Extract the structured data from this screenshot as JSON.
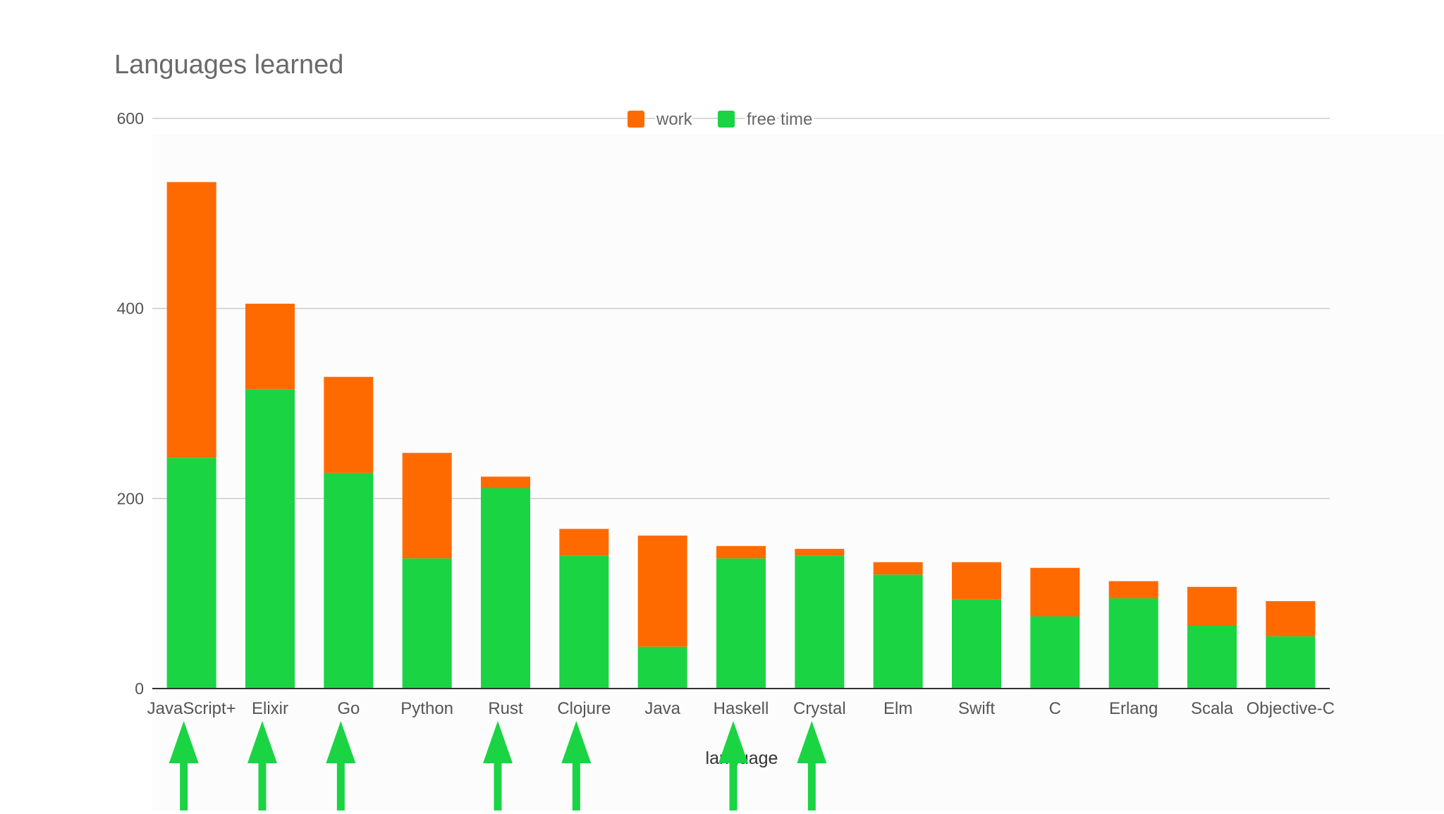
{
  "chart_data": {
    "type": "bar",
    "stacked": true,
    "title": "Languages learned",
    "xlabel": "language",
    "ylabel": "",
    "ylim": [
      0,
      600
    ],
    "yticks": [
      0,
      200,
      400,
      600
    ],
    "grid": true,
    "legend_position": "top",
    "categories": [
      "JavaScript+",
      "Elixir",
      "Go",
      "Python",
      "Rust",
      "Clojure",
      "Java",
      "Haskell",
      "Crystal",
      "Elm",
      "Swift",
      "C",
      "Erlang",
      "Scala",
      "Objective-C"
    ],
    "series": [
      {
        "name": "free time",
        "color": "#1ad444",
        "values": [
          243,
          315,
          227,
          137,
          211,
          140,
          44,
          137,
          140,
          120,
          94,
          76,
          95,
          66,
          55
        ]
      },
      {
        "name": "work",
        "color": "#ff6a00",
        "values": [
          290,
          90,
          101,
          111,
          12,
          28,
          117,
          13,
          7,
          13,
          39,
          51,
          18,
          41,
          37
        ]
      }
    ],
    "highlighted_categories": [
      "JavaScript+",
      "Elixir",
      "Go",
      "Rust",
      "Clojure",
      "Haskell",
      "Crystal"
    ],
    "highlight_marker": "up-arrow",
    "highlight_color": "#1ad444"
  }
}
